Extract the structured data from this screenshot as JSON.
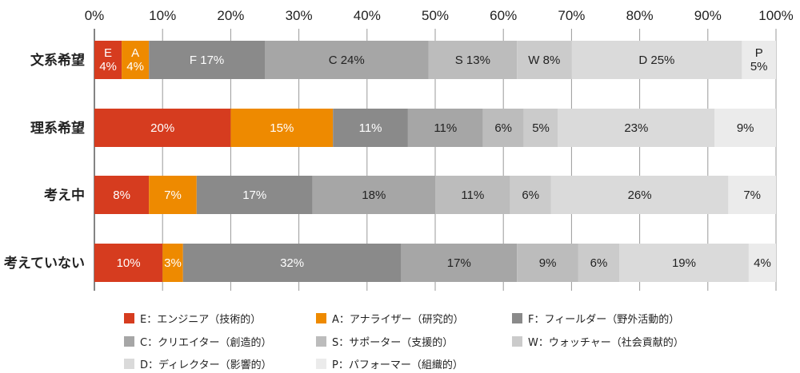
{
  "chart_data": {
    "type": "bar",
    "orientation": "horizontal",
    "stacked": true,
    "categories": [
      "文系希望",
      "理系希望",
      "考え中",
      "考えていない"
    ],
    "x_ticks": [
      "0%",
      "10%",
      "20%",
      "30%",
      "40%",
      "50%",
      "60%",
      "70%",
      "80%",
      "90%",
      "100%"
    ],
    "xlim": [
      0,
      100
    ],
    "grid": true,
    "legend_position": "bottom",
    "series": [
      {
        "name": "E：エンジニア（技術的）",
        "code": "E",
        "color": "#d63c1f",
        "text_color": "#ffffff",
        "values": [
          4,
          20,
          8,
          10
        ],
        "labels": [
          "E\n4%",
          "20%",
          "8%",
          "10%"
        ]
      },
      {
        "name": "A：アナライザー（研究的）",
        "code": "A",
        "color": "#ee8a00",
        "text_color": "#ffffff",
        "values": [
          4,
          15,
          7,
          3
        ],
        "labels": [
          "A\n4%",
          "15%",
          "7%",
          "3%"
        ]
      },
      {
        "name": "F：フィールダー（野外活動的）",
        "code": "F",
        "color": "#8a8a8a",
        "text_color": "#ffffff",
        "values": [
          17,
          11,
          17,
          32
        ],
        "labels": [
          "F 17%",
          "11%",
          "17%",
          "32%"
        ]
      },
      {
        "name": "C：クリエイター（創造的）",
        "code": "C",
        "color": "#a6a6a6",
        "text_color": "#222222",
        "values": [
          24,
          11,
          18,
          17
        ],
        "labels": [
          "C 24%",
          "11%",
          "18%",
          "17%"
        ]
      },
      {
        "name": "S：サポーター（支援的）",
        "code": "S",
        "color": "#bcbcbc",
        "text_color": "#222222",
        "values": [
          13,
          6,
          11,
          9
        ],
        "labels": [
          "S 13%",
          "6%",
          "11%",
          "9%"
        ]
      },
      {
        "name": "W：ウォッチャー（社会貢献的）",
        "code": "W",
        "color": "#cbcbcb",
        "text_color": "#222222",
        "values": [
          8,
          5,
          6,
          6
        ],
        "labels": [
          "W 8%",
          "5%",
          "6%",
          "6%"
        ]
      },
      {
        "name": "D：ディレクター（影響的）",
        "code": "D",
        "color": "#dadada",
        "text_color": "#222222",
        "values": [
          25,
          23,
          26,
          19
        ],
        "labels": [
          "D 25%",
          "23%",
          "26%",
          "19%"
        ]
      },
      {
        "name": "P：パフォーマー（組織的）",
        "code": "P",
        "color": "#ebebeb",
        "text_color": "#222222",
        "values": [
          5,
          9,
          7,
          4
        ],
        "labels": [
          "P\n5%",
          "9%",
          "7%",
          "4%"
        ]
      }
    ]
  }
}
